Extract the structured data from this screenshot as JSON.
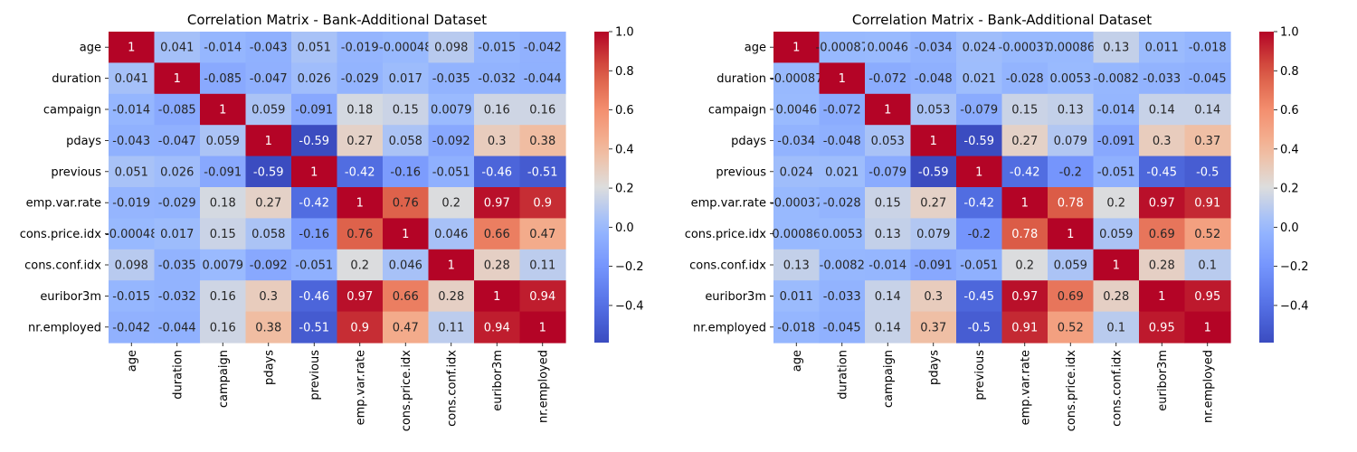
{
  "chart_data": [
    {
      "type": "heatmap",
      "title": "Correlation Matrix - Bank-Additional Dataset",
      "labels": [
        "age",
        "duration",
        "campaign",
        "pdays",
        "previous",
        "emp.var.rate",
        "cons.price.idx",
        "cons.conf.idx",
        "euribor3m",
        "nr.employed"
      ],
      "values": [
        [
          1,
          0.041,
          -0.014,
          -0.043,
          0.051,
          -0.019,
          -0.00048,
          0.098,
          -0.015,
          -0.042
        ],
        [
          0.041,
          1,
          -0.085,
          -0.047,
          0.026,
          -0.029,
          0.017,
          -0.035,
          -0.032,
          -0.044
        ],
        [
          -0.014,
          -0.085,
          1,
          0.059,
          -0.091,
          0.18,
          0.15,
          0.0079,
          0.16,
          0.16
        ],
        [
          -0.043,
          -0.047,
          0.059,
          1,
          -0.59,
          0.27,
          0.058,
          -0.092,
          0.3,
          0.38
        ],
        [
          0.051,
          0.026,
          -0.091,
          -0.59,
          1,
          -0.42,
          -0.16,
          -0.051,
          -0.46,
          -0.51
        ],
        [
          -0.019,
          -0.029,
          0.18,
          0.27,
          -0.42,
          1,
          0.76,
          0.2,
          0.97,
          0.9
        ],
        [
          -0.00048,
          0.017,
          0.15,
          0.058,
          -0.16,
          0.76,
          1,
          0.046,
          0.66,
          0.47
        ],
        [
          0.098,
          -0.035,
          0.0079,
          -0.092,
          -0.051,
          0.2,
          0.046,
          1,
          0.28,
          0.11
        ],
        [
          -0.015,
          -0.032,
          0.16,
          0.3,
          -0.46,
          0.97,
          0.66,
          0.28,
          1,
          0.94
        ],
        [
          -0.042,
          -0.044,
          0.16,
          0.38,
          -0.51,
          0.9,
          0.47,
          0.11,
          0.94,
          1
        ]
      ],
      "annotations": [
        [
          "1",
          "0.041",
          "-0.014",
          "-0.043",
          "0.051",
          "-0.019",
          "-0.00048",
          "0.098",
          "-0.015",
          "-0.042"
        ],
        [
          "0.041",
          "1",
          "-0.085",
          "-0.047",
          "0.026",
          "-0.029",
          "0.017",
          "-0.035",
          "-0.032",
          "-0.044"
        ],
        [
          "-0.014",
          "-0.085",
          "1",
          "0.059",
          "-0.091",
          "0.18",
          "0.15",
          "0.0079",
          "0.16",
          "0.16"
        ],
        [
          "-0.043",
          "-0.047",
          "0.059",
          "1",
          "-0.59",
          "0.27",
          "0.058",
          "-0.092",
          "0.3",
          "0.38"
        ],
        [
          "0.051",
          "0.026",
          "-0.091",
          "-0.59",
          "1",
          "-0.42",
          "-0.16",
          "-0.051",
          "-0.46",
          "-0.51"
        ],
        [
          "-0.019",
          "-0.029",
          "0.18",
          "0.27",
          "-0.42",
          "1",
          "0.76",
          "0.2",
          "0.97",
          "0.9"
        ],
        [
          "-0.00048",
          "0.017",
          "0.15",
          "0.058",
          "-0.16",
          "0.76",
          "1",
          "0.046",
          "0.66",
          "0.47"
        ],
        [
          "0.098",
          "-0.035",
          "0.0079",
          "-0.092",
          "-0.051",
          "0.2",
          "0.046",
          "1",
          "0.28",
          "0.11"
        ],
        [
          "-0.015",
          "-0.032",
          "0.16",
          "0.3",
          "-0.46",
          "0.97",
          "0.66",
          "0.28",
          "1",
          "0.94"
        ],
        [
          "-0.042",
          "-0.044",
          "0.16",
          "0.38",
          "-0.51",
          "0.9",
          "0.47",
          "0.11",
          "0.94",
          "1"
        ]
      ],
      "colormap": "coolwarm",
      "vmin": -0.59,
      "vmax": 1,
      "colorbar_ticks": [
        1.0,
        0.8,
        0.6,
        0.4,
        0.2,
        0.0,
        -0.2,
        -0.4
      ],
      "colorbar_tick_labels": [
        "1.0",
        "0.8",
        "0.6",
        "0.4",
        "0.2",
        "0.0",
        "−0.2",
        "−0.4"
      ]
    },
    {
      "type": "heatmap",
      "title": "Correlation Matrix - Bank-Additional Dataset",
      "labels": [
        "age",
        "duration",
        "campaign",
        "pdays",
        "previous",
        "emp.var.rate",
        "cons.price.idx",
        "cons.conf.idx",
        "euribor3m",
        "nr.employed"
      ],
      "values": [
        [
          1,
          -0.00087,
          0.0046,
          -0.034,
          0.024,
          -0.00037,
          0.00086,
          0.13,
          0.011,
          -0.018
        ],
        [
          -0.00087,
          1,
          -0.072,
          -0.048,
          0.021,
          -0.028,
          0.0053,
          -0.0082,
          -0.033,
          -0.045
        ],
        [
          0.0046,
          -0.072,
          1,
          0.053,
          -0.079,
          0.15,
          0.13,
          -0.014,
          0.14,
          0.14
        ],
        [
          -0.034,
          -0.048,
          0.053,
          1,
          -0.59,
          0.27,
          0.079,
          -0.091,
          0.3,
          0.37
        ],
        [
          0.024,
          0.021,
          -0.079,
          -0.59,
          1,
          -0.42,
          -0.2,
          -0.051,
          -0.45,
          -0.5
        ],
        [
          -0.00037,
          -0.028,
          0.15,
          0.27,
          -0.42,
          1,
          0.78,
          0.2,
          0.97,
          0.91
        ],
        [
          0.00086,
          0.0053,
          0.13,
          0.079,
          -0.2,
          0.78,
          1,
          0.059,
          0.69,
          0.52
        ],
        [
          0.13,
          -0.0082,
          -0.014,
          -0.091,
          -0.051,
          0.2,
          0.059,
          1,
          0.28,
          0.1
        ],
        [
          0.011,
          -0.033,
          0.14,
          0.3,
          -0.45,
          0.97,
          0.69,
          0.28,
          1,
          0.95
        ],
        [
          -0.018,
          -0.045,
          0.14,
          0.37,
          -0.5,
          0.91,
          0.52,
          0.1,
          0.95,
          1
        ]
      ],
      "annotations": [
        [
          "1",
          "-0.00087",
          "0.0046",
          "-0.034",
          "0.024",
          "-0.00037",
          "0.00086",
          "0.13",
          "0.011",
          "-0.018"
        ],
        [
          "-0.00087",
          "1",
          "-0.072",
          "-0.048",
          "0.021",
          "-0.028",
          "0.0053",
          "-0.0082",
          "-0.033",
          "-0.045"
        ],
        [
          "0.0046",
          "-0.072",
          "1",
          "0.053",
          "-0.079",
          "0.15",
          "0.13",
          "-0.014",
          "0.14",
          "0.14"
        ],
        [
          "-0.034",
          "-0.048",
          "0.053",
          "1",
          "-0.59",
          "0.27",
          "0.079",
          "-0.091",
          "0.3",
          "0.37"
        ],
        [
          "0.024",
          "0.021",
          "-0.079",
          "-0.59",
          "1",
          "-0.42",
          "-0.2",
          "-0.051",
          "-0.45",
          "-0.5"
        ],
        [
          "-0.00037",
          "-0.028",
          "0.15",
          "0.27",
          "-0.42",
          "1",
          "0.78",
          "0.2",
          "0.97",
          "0.91"
        ],
        [
          "0.00086",
          "0.0053",
          "0.13",
          "0.079",
          "-0.2",
          "0.78",
          "1",
          "0.059",
          "0.69",
          "0.52"
        ],
        [
          "0.13",
          "-0.0082",
          "-0.014",
          "-0.091",
          "-0.051",
          "0.2",
          "0.059",
          "1",
          "0.28",
          "0.1"
        ],
        [
          "0.011",
          "-0.033",
          "0.14",
          "0.3",
          "-0.45",
          "0.97",
          "0.69",
          "0.28",
          "1",
          "0.95"
        ],
        [
          "-0.018",
          "-0.045",
          "0.14",
          "0.37",
          "-0.5",
          "0.91",
          "0.52",
          "0.1",
          "0.95",
          "1"
        ]
      ],
      "colormap": "coolwarm",
      "vmin": -0.59,
      "vmax": 1,
      "colorbar_ticks": [
        1.0,
        0.8,
        0.6,
        0.4,
        0.2,
        0.0,
        -0.2,
        -0.4
      ],
      "colorbar_tick_labels": [
        "1.0",
        "0.8",
        "0.6",
        "0.4",
        "0.2",
        "0.0",
        "−0.2",
        "−0.4"
      ]
    }
  ]
}
